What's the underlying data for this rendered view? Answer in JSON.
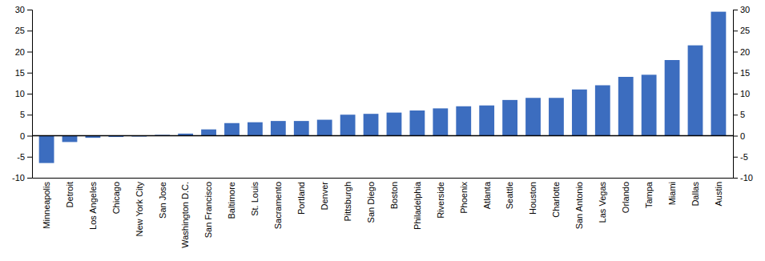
{
  "chart_data": {
    "type": "bar",
    "categories": [
      "Minneapolis",
      "Detroit",
      "Los Angeles",
      "Chicago",
      "New York City",
      "San Jose",
      "Washington D.C.",
      "San Francisco",
      "Baltimore",
      "St. Louis",
      "Sacramento",
      "Portland",
      "Denver",
      "Pittsburgh",
      "San Diego",
      "Boston",
      "Philadelphia",
      "Riverside",
      "Phoenix",
      "Atlanta",
      "Seattle",
      "Houston",
      "Charlotte",
      "San Antonio",
      "Las Vegas",
      "Orlando",
      "Tampa",
      "Miami",
      "Dallas",
      "Austin"
    ],
    "values": [
      -6.5,
      -1.5,
      -0.5,
      -0.3,
      -0.2,
      0.2,
      0.5,
      1.5,
      3.0,
      3.2,
      3.5,
      3.5,
      3.8,
      5.0,
      5.2,
      5.5,
      6.0,
      6.5,
      7.0,
      7.2,
      8.5,
      9.0,
      9.0,
      11.0,
      12.0,
      14.0,
      14.5,
      18.0,
      21.5,
      29.5
    ],
    "color": "#3c6dbf",
    "ylim": [
      -10,
      30
    ],
    "yticks": [
      -10,
      -5,
      0,
      5,
      10,
      15,
      20,
      25,
      30
    ],
    "y2lim": [
      -10,
      30
    ],
    "y2ticks": [
      -10,
      -5,
      0,
      5,
      10,
      15,
      20,
      25,
      30
    ],
    "grid": false
  }
}
